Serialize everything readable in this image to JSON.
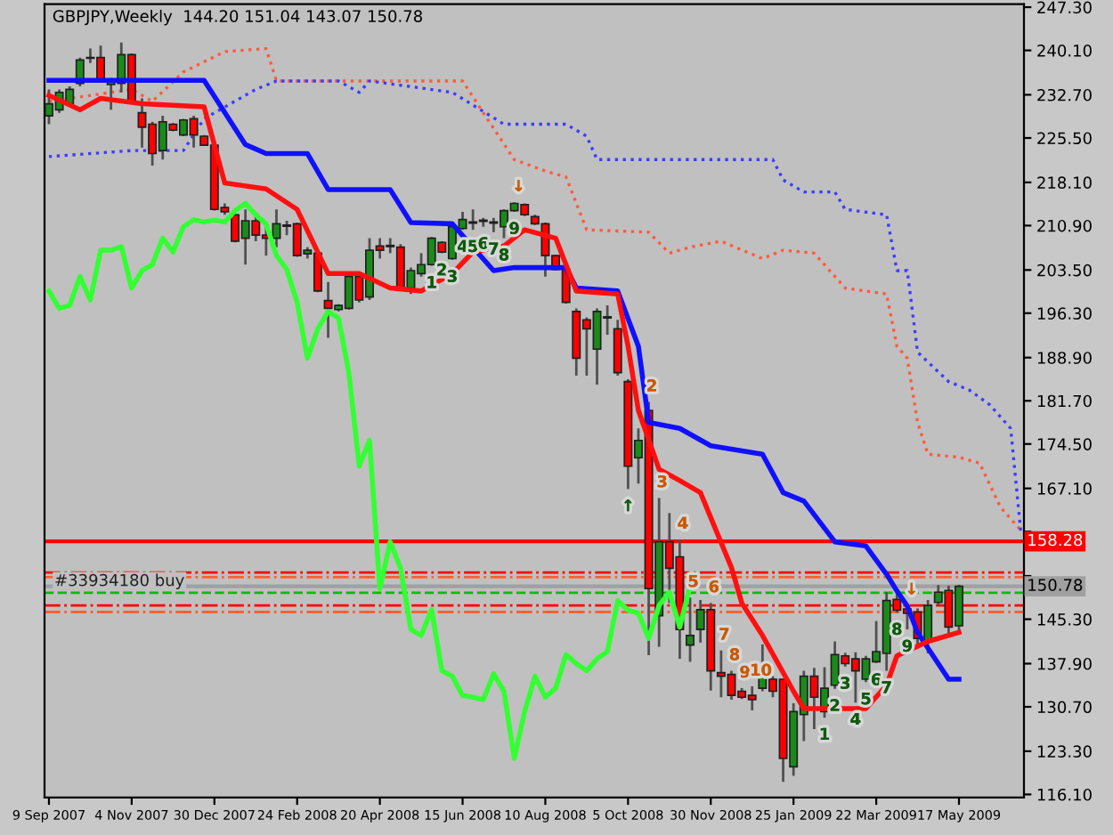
{
  "chart_data": {
    "type": "candlestick",
    "title": "GBPJPY,Weekly  144.20 151.04 143.07 150.78",
    "x": [
      "2007-09-09",
      "2007-09-16",
      "2007-09-23",
      "2007-09-30",
      "2007-10-07",
      "2007-10-14",
      "2007-10-21",
      "2007-10-28",
      "2007-11-04",
      "2007-11-11",
      "2007-11-18",
      "2007-11-25",
      "2007-12-02",
      "2007-12-09",
      "2007-12-16",
      "2007-12-23",
      "2007-12-30",
      "2008-01-06",
      "2008-01-13",
      "2008-01-20",
      "2008-01-27",
      "2008-02-03",
      "2008-02-10",
      "2008-02-17",
      "2008-02-24",
      "2008-03-02",
      "2008-03-09",
      "2008-03-16",
      "2008-03-23",
      "2008-03-30",
      "2008-04-06",
      "2008-04-13",
      "2008-04-20",
      "2008-04-27",
      "2008-05-04",
      "2008-05-11",
      "2008-05-18",
      "2008-05-25",
      "2008-06-01",
      "2008-06-08",
      "2008-06-15",
      "2008-06-22",
      "2008-06-29",
      "2008-07-06",
      "2008-07-13",
      "2008-07-20",
      "2008-07-27",
      "2008-08-03",
      "2008-08-10",
      "2008-08-17",
      "2008-08-24",
      "2008-08-31",
      "2008-09-07",
      "2008-09-14",
      "2008-09-21",
      "2008-09-28",
      "2008-10-05",
      "2008-10-12",
      "2008-10-19",
      "2008-10-26",
      "2008-11-02",
      "2008-11-09",
      "2008-11-16",
      "2008-11-23",
      "2008-11-30",
      "2008-12-07",
      "2008-12-14",
      "2008-12-21",
      "2008-12-28",
      "2009-01-04",
      "2009-01-11",
      "2009-01-18",
      "2009-01-25",
      "2009-02-01",
      "2009-02-08",
      "2009-02-15",
      "2009-02-22",
      "2009-03-01",
      "2009-03-08",
      "2009-03-15",
      "2009-03-22",
      "2009-03-29",
      "2009-04-05",
      "2009-04-12",
      "2009-04-19",
      "2009-04-26",
      "2009-05-03",
      "2009-05-10",
      "2009-05-17"
    ],
    "ohlc": [
      [
        229.2,
        233.6,
        227.8,
        231.2
      ],
      [
        230.2,
        233.6,
        229.7,
        233.1
      ],
      [
        231.2,
        234.1,
        230.7,
        233.6
      ],
      [
        234.6,
        238.9,
        234.1,
        238.5
      ],
      [
        238.9,
        240.4,
        238.0,
        238.8
      ],
      [
        238.9,
        240.9,
        234.9,
        235.0
      ],
      [
        234.4,
        235.5,
        230.2,
        234.8
      ],
      [
        234.6,
        241.4,
        233.1,
        239.4
      ],
      [
        239.4,
        239.6,
        231.2,
        231.6
      ],
      [
        229.7,
        232.1,
        223.9,
        227.3
      ],
      [
        227.8,
        228.2,
        220.9,
        222.9
      ],
      [
        223.4,
        229.2,
        221.9,
        228.2
      ],
      [
        227.8,
        228.0,
        226.6,
        226.8
      ],
      [
        226.0,
        228.7,
        225.8,
        228.5
      ],
      [
        228.7,
        229.2,
        223.9,
        226.0
      ],
      [
        225.8,
        226.0,
        224.2,
        224.3
      ],
      [
        224.3,
        224.5,
        213.4,
        213.6
      ],
      [
        213.9,
        214.6,
        212.7,
        213.2
      ],
      [
        212.7,
        212.9,
        208.1,
        208.3
      ],
      [
        208.8,
        213.6,
        204.4,
        211.7
      ],
      [
        211.7,
        212.7,
        208.3,
        209.3
      ],
      [
        209.3,
        211.2,
        205.9,
        208.8
      ],
      [
        208.8,
        213.6,
        207.3,
        211.2
      ],
      [
        211.0,
        211.7,
        209.3,
        210.8
      ],
      [
        211.2,
        211.4,
        205.7,
        205.9
      ],
      [
        206.2,
        207.3,
        205.4,
        206.8
      ],
      [
        206.3,
        206.5,
        199.8,
        200.0
      ],
      [
        198.4,
        201.5,
        192.2,
        197.1
      ],
      [
        196.9,
        197.8,
        196.6,
        197.6
      ],
      [
        197.1,
        202.6,
        196.9,
        202.4
      ],
      [
        202.4,
        202.9,
        198.1,
        198.5
      ],
      [
        199.0,
        208.8,
        198.5,
        206.8
      ],
      [
        207.5,
        208.8,
        205.4,
        206.8
      ],
      [
        207.6,
        208.8,
        206.3,
        207.4
      ],
      [
        207.3,
        207.8,
        200.0,
        200.5
      ],
      [
        200.5,
        203.9,
        199.5,
        203.4
      ],
      [
        202.9,
        206.3,
        202.4,
        204.4
      ],
      [
        204.4,
        209.0,
        204.2,
        208.8
      ],
      [
        208.1,
        208.3,
        206.3,
        206.5
      ],
      [
        205.4,
        210.9,
        205.2,
        210.7
      ],
      [
        210.4,
        213.2,
        210.2,
        211.9
      ],
      [
        211.3,
        213.6,
        210.2,
        211.5
      ],
      [
        211.6,
        212.2,
        210.7,
        211.8
      ],
      [
        211.3,
        212.2,
        209.8,
        211.5
      ],
      [
        210.7,
        213.6,
        208.8,
        213.4
      ],
      [
        213.4,
        214.8,
        213.2,
        214.6
      ],
      [
        214.4,
        214.6,
        212.5,
        212.7
      ],
      [
        212.4,
        212.7,
        211.0,
        211.2
      ],
      [
        211.2,
        211.4,
        202.4,
        205.9
      ],
      [
        205.9,
        206.0,
        203.4,
        203.6
      ],
      [
        203.6,
        203.8,
        197.9,
        198.1
      ],
      [
        196.6,
        197.1,
        185.9,
        188.8
      ],
      [
        195.2,
        195.6,
        185.9,
        193.7
      ],
      [
        190.3,
        197.1,
        184.4,
        196.6
      ],
      [
        195.7,
        197.6,
        192.7,
        195.5
      ],
      [
        193.7,
        195.2,
        185.9,
        186.4
      ],
      [
        184.9,
        185.3,
        167.0,
        170.8
      ],
      [
        172.2,
        177.1,
        167.9,
        175.1
      ],
      [
        180.1,
        181.5,
        139.3,
        150.4
      ],
      [
        145.9,
        165.5,
        140.7,
        158.2
      ],
      [
        158.2,
        163.0,
        148.0,
        153.8
      ],
      [
        155.7,
        158.6,
        138.7,
        143.6
      ],
      [
        141.0,
        148.9,
        138.2,
        142.6
      ],
      [
        143.6,
        148.5,
        141.4,
        146.9
      ],
      [
        146.9,
        148.0,
        133.4,
        136.7
      ],
      [
        136.4,
        140.1,
        132.3,
        135.8
      ],
      [
        136.1,
        136.7,
        131.9,
        132.6
      ],
      [
        133.3,
        133.8,
        132.0,
        132.3
      ],
      [
        132.6,
        134.1,
        130.1,
        131.9
      ],
      [
        133.8,
        141.1,
        133.3,
        136.2
      ],
      [
        135.3,
        135.8,
        132.3,
        133.3
      ],
      [
        135.3,
        135.3,
        118.2,
        122.1
      ],
      [
        120.7,
        131.3,
        119.2,
        129.9
      ],
      [
        129.4,
        136.7,
        125.0,
        135.8
      ],
      [
        135.8,
        137.2,
        127.0,
        132.3
      ],
      [
        129.9,
        137.3,
        128.9,
        133.8
      ],
      [
        134.3,
        141.6,
        133.7,
        139.4
      ],
      [
        139.2,
        139.7,
        137.4,
        137.9
      ],
      [
        138.7,
        139.8,
        131.4,
        136.7
      ],
      [
        135.3,
        139.2,
        134.8,
        138.7
      ],
      [
        138.2,
        145.0,
        138.0,
        139.9
      ],
      [
        139.6,
        149.8,
        136.7,
        148.4
      ],
      [
        148.6,
        149.5,
        146.4,
        146.8
      ],
      [
        147.0,
        147.6,
        143.6,
        146.3
      ],
      [
        146.5,
        147.1,
        140.4,
        142.1
      ],
      [
        141.6,
        148.5,
        139.6,
        147.6
      ],
      [
        148.1,
        151.0,
        147.7,
        149.8
      ],
      [
        150.1,
        150.9,
        142.9,
        144.0
      ],
      [
        144.2,
        151.04,
        143.07,
        150.78
      ]
    ],
    "colors": [
      "#1a8a1a",
      "#1a8a1a",
      "#1a8a1a",
      "#1a8a1a",
      "#ff0000",
      "#ff0000",
      "#1a8a1a",
      "#1a8a1a",
      "#ff0000",
      "#ff0000",
      "#ff0000",
      "#1a8a1a",
      "#ff0000",
      "#1a8a1a",
      "#ff0000",
      "#ff0000",
      "#ff0000",
      "#ff0000",
      "#ff0000",
      "#1a8a1a",
      "#ff0000",
      "#ff0000",
      "#1a8a1a",
      "#ff0000",
      "#ff0000",
      "#1a8a1a",
      "#ff0000",
      "#ff0000",
      "#1a8a1a",
      "#1a8a1a",
      "#ff0000",
      "#1a8a1a",
      "#ff0000",
      "#ff0000",
      "#ff0000",
      "#1a8a1a",
      "#1a8a1a",
      "#1a8a1a",
      "#ff0000",
      "#1a8a1a",
      "#1a8a1a",
      "#1a8a1a",
      "#1a8a1a",
      "#1a8a1a",
      "#1a8a1a",
      "#1a8a1a",
      "#ff0000",
      "#ff0000",
      "#ff0000",
      "#ff0000",
      "#ff0000",
      "#ff0000",
      "#ff0000",
      "#1a8a1a",
      "#ff0000",
      "#ff0000",
      "#ff0000",
      "#1a8a1a",
      "#ff0000",
      "#1a8a1a",
      "#ff0000",
      "#ff0000",
      "#1a8a1a",
      "#1a8a1a",
      "#ff0000",
      "#ff0000",
      "#ff0000",
      "#ff0000",
      "#ff0000",
      "#1a8a1a",
      "#ff0000",
      "#ff0000",
      "#1a8a1a",
      "#1a8a1a",
      "#ff0000",
      "#1a8a1a",
      "#1a8a1a",
      "#ff0000",
      "#ff0000",
      "#1a8a1a",
      "#1a8a1a",
      "#1a8a1a",
      "#ff0000",
      "#ff0000",
      "#ff0000",
      "#1a8a1a",
      "#1a8a1a",
      "#ff0000",
      "#1a8a1a"
    ],
    "series": [
      {
        "type": "line",
        "color": "#1010ff",
        "line_style": "solid",
        "x": [
          "2007-09-09",
          "2007-12-23",
          "2008-01-20",
          "2008-02-03",
          "2008-03-02",
          "2008-03-16",
          "2008-04-27",
          "2008-05-11",
          "2008-06-08",
          "2008-07-06",
          "2008-07-20",
          "2008-08-24",
          "2008-08-31",
          "2008-09-28",
          "2008-10-12",
          "2008-10-19",
          "2008-11-09",
          "2008-11-30",
          "2009-01-04",
          "2009-01-18",
          "2009-02-01",
          "2009-02-22",
          "2009-03-15",
          "2009-03-29",
          "2009-04-05",
          "2009-04-12",
          "2009-04-19",
          "2009-05-10",
          "2009-05-17"
        ],
        "values": [
          235.1,
          235.1,
          224.4,
          222.9,
          222.9,
          216.9,
          216.9,
          211.4,
          211.2,
          203.4,
          203.9,
          203.9,
          200.5,
          200.0,
          190.8,
          178.1,
          177.1,
          174.2,
          172.8,
          166.4,
          165.0,
          158.2,
          157.5,
          152.8,
          150.0,
          147.5,
          143.1,
          135.3,
          135.3
        ]
      },
      {
        "type": "line",
        "color": "#ff1010",
        "line_style": "solid",
        "x": [
          "2007-09-09",
          "2007-09-30",
          "2007-10-14",
          "2007-11-11",
          "2007-12-23",
          "2008-01-06",
          "2008-02-03",
          "2008-02-24",
          "2008-03-16",
          "2008-04-06",
          "2008-04-27",
          "2008-05-18",
          "2008-06-08",
          "2008-06-22",
          "2008-07-13",
          "2008-07-27",
          "2008-08-17",
          "2008-08-31",
          "2008-09-28",
          "2008-10-05",
          "2008-10-12",
          "2008-10-26",
          "2008-11-09",
          "2008-11-23",
          "2008-12-14",
          "2008-12-21",
          "2009-01-04",
          "2009-01-25",
          "2009-02-01",
          "2009-03-15",
          "2009-03-29",
          "2009-04-05",
          "2009-04-26",
          "2009-05-17"
        ],
        "values": [
          232.6,
          230.2,
          232.1,
          231.2,
          230.7,
          218.0,
          217.0,
          213.6,
          202.9,
          202.9,
          200.5,
          200.0,
          202.9,
          206.5,
          207.5,
          210.2,
          208.8,
          200.0,
          199.5,
          190.8,
          180.1,
          170.3,
          168.4,
          166.4,
          153.9,
          148.0,
          142.6,
          133.3,
          130.4,
          130.4,
          134.3,
          139.2,
          141.6,
          143.1
        ]
      },
      {
        "type": "line",
        "color": "#33ff33",
        "line_style": "solid",
        "x": [
          "2007-09-09",
          "2007-09-16",
          "2007-09-23",
          "2007-09-30",
          "2007-10-07",
          "2007-10-14",
          "2007-10-21",
          "2007-10-28",
          "2007-11-04",
          "2007-11-11",
          "2007-11-18",
          "2007-11-25",
          "2007-12-02",
          "2007-12-09",
          "2007-12-16",
          "2007-12-23",
          "2007-12-30",
          "2008-01-06",
          "2008-01-13",
          "2008-01-20",
          "2008-01-27",
          "2008-02-03",
          "2008-02-10",
          "2008-02-17",
          "2008-02-24",
          "2008-03-02",
          "2008-03-09",
          "2008-03-16",
          "2008-03-23",
          "2008-03-30",
          "2008-04-06",
          "2008-04-13",
          "2008-04-20",
          "2008-04-27",
          "2008-05-04",
          "2008-05-11",
          "2008-05-18",
          "2008-05-25",
          "2008-06-01",
          "2008-06-08",
          "2008-06-15",
          "2008-06-22",
          "2008-06-29",
          "2008-07-06",
          "2008-07-13",
          "2008-07-20",
          "2008-07-27",
          "2008-08-03",
          "2008-08-10",
          "2008-08-17",
          "2008-08-24",
          "2008-08-31",
          "2008-09-07",
          "2008-09-14",
          "2008-09-21",
          "2008-09-28",
          "2008-10-05",
          "2008-10-12",
          "2008-10-19",
          "2008-10-26",
          "2008-11-02",
          "2008-11-09",
          "2008-11-16"
        ],
        "values": [
          200.0,
          197.1,
          197.6,
          202.4,
          198.5,
          206.8,
          206.8,
          207.4,
          200.5,
          203.4,
          204.4,
          208.8,
          206.5,
          210.7,
          211.9,
          211.5,
          211.8,
          211.5,
          213.4,
          214.6,
          212.7,
          211.2,
          205.9,
          203.6,
          198.1,
          188.8,
          193.7,
          196.6,
          195.5,
          186.4,
          170.8,
          175.1,
          150.4,
          158.2,
          153.8,
          143.6,
          142.6,
          146.9,
          136.7,
          135.8,
          132.6,
          132.3,
          131.9,
          136.2,
          133.3,
          122.1,
          129.9,
          135.8,
          132.3,
          133.8,
          139.4,
          137.9,
          136.7,
          138.7,
          139.9,
          148.4,
          146.8,
          146.3,
          142.1,
          147.6,
          149.8,
          144.0,
          150.8
        ]
      },
      {
        "type": "line",
        "color": "#ff5a3c",
        "line_style": "dotted",
        "x": [
          "2007-09-09",
          "2007-11-04",
          "2007-11-18",
          "2007-12-09",
          "2008-01-06",
          "2008-02-03",
          "2008-02-10",
          "2008-06-15",
          "2008-06-29",
          "2008-07-20",
          "2008-08-10",
          "2008-08-24",
          "2008-09-07",
          "2008-10-19",
          "2008-11-02",
          "2008-11-16",
          "2008-12-07",
          "2009-01-04",
          "2009-01-18",
          "2009-02-08",
          "2009-03-01",
          "2009-03-29",
          "2009-04-05",
          "2009-04-12",
          "2009-04-19",
          "2009-04-26",
          "2009-05-17",
          "2009-05-31",
          "2009-06-14",
          "2009-06-28"
        ],
        "values": [
          231.6,
          233.6,
          231.6,
          236.5,
          239.9,
          240.4,
          235.0,
          235.0,
          229.7,
          221.9,
          220.0,
          219.0,
          210.2,
          209.8,
          206.3,
          207.3,
          208.3,
          205.4,
          206.8,
          206.3,
          200.5,
          199.5,
          190.8,
          188.8,
          178.1,
          172.8,
          172.3,
          171.3,
          164.0,
          160.1
        ]
      },
      {
        "type": "line",
        "color": "#3c3cff",
        "line_style": "dotted",
        "x": [
          "2007-09-09",
          "2007-11-04",
          "2007-12-09",
          "2007-12-23",
          "2008-01-27",
          "2008-02-10",
          "2008-03-23",
          "2008-04-06",
          "2008-04-13",
          "2008-06-08",
          "2008-07-13",
          "2008-08-24",
          "2008-09-07",
          "2008-09-14",
          "2009-01-11",
          "2009-01-18",
          "2009-02-01",
          "2009-02-22",
          "2009-03-01",
          "2009-03-29",
          "2009-04-05",
          "2009-04-12",
          "2009-04-19",
          "2009-05-10",
          "2009-05-24",
          "2009-06-07",
          "2009-06-21",
          "2009-06-28"
        ],
        "values": [
          222.4,
          223.4,
          223.4,
          228.7,
          233.6,
          235.0,
          235.0,
          233.1,
          235.0,
          233.1,
          227.8,
          227.8,
          225.8,
          221.9,
          221.9,
          218.5,
          216.5,
          216.5,
          213.6,
          212.7,
          203.4,
          203.4,
          189.8,
          184.9,
          183.5,
          181.0,
          177.1,
          159.5
        ]
      }
    ],
    "ref_lines": [
      {
        "axis": "y",
        "value": 158.28,
        "label": "158.28",
        "color": "#ff0000",
        "line_style": "solid"
      },
      {
        "axis": "y",
        "value": 153.1,
        "color": "#ff0000",
        "line_style": "dashdot"
      },
      {
        "axis": "y",
        "value": 152.3,
        "color": "#ff6030",
        "line_style": "dashdot"
      },
      {
        "axis": "y",
        "value": 150.78,
        "label": "150.78",
        "color": "#a0a0a0",
        "line_style": "solid"
      },
      {
        "axis": "y",
        "value": 149.7,
        "label": "#33934180 buy",
        "color": "#00c000",
        "line_style": "dashed"
      },
      {
        "axis": "y",
        "value": 147.6,
        "color": "#ff0000",
        "line_style": "dashdot"
      },
      {
        "axis": "y",
        "value": 146.5,
        "color": "#ff6030",
        "line_style": "dashdot"
      }
    ],
    "annotations": [
      {
        "text": "1",
        "x": "2008-05-25",
        "y": 204.2
      },
      {
        "text": "2",
        "x": "2008-06-01",
        "y": 206.3
      },
      {
        "text": "3",
        "x": "2008-06-08",
        "y": 205.2
      },
      {
        "text": "4",
        "x": "2008-06-15",
        "y": 210.2
      },
      {
        "text": "5",
        "x": "2008-06-22",
        "y": 210.2
      },
      {
        "text": "6",
        "x": "2008-06-29",
        "y": 210.7
      },
      {
        "text": "7",
        "x": "2008-07-06",
        "y": 209.8
      },
      {
        "text": "8",
        "x": "2008-07-13",
        "y": 208.8
      },
      {
        "text": "9",
        "x": "2008-07-20",
        "y": 213.2
      },
      {
        "text": "↓",
        "x": "2008-07-20",
        "y": 214.8
      },
      {
        "text": "↑",
        "x": "2008-10-05",
        "y": 167.0
      },
      {
        "text": "↓",
        "x": "2009-04-12",
        "y": 147.6
      },
      {
        "text": "2",
        "x": "2008-10-19",
        "y": 181.5
      },
      {
        "text": "3",
        "x": "2008-10-26",
        "y": 165.5
      },
      {
        "text": "4",
        "x": "2008-11-09",
        "y": 158.6
      },
      {
        "text": "5",
        "x": "2008-11-16",
        "y": 148.9
      },
      {
        "text": "6",
        "x": "2008-11-30",
        "y": 148.0
      },
      {
        "text": "7",
        "x": "2008-12-07",
        "y": 140.1
      },
      {
        "text": "8",
        "x": "2008-12-14",
        "y": 136.7
      },
      {
        "text": "9",
        "x": "2008-12-21",
        "y": 133.8
      },
      {
        "text": "10",
        "x": "2008-12-28",
        "y": 134.1
      },
      {
        "text": "1",
        "x": "2009-02-15",
        "y": 128.9
      },
      {
        "text": "2",
        "x": "2009-02-22",
        "y": 133.7
      },
      {
        "text": "3",
        "x": "2009-03-01",
        "y": 137.4
      },
      {
        "text": "4",
        "x": "2009-03-08",
        "y": 131.4
      },
      {
        "text": "5",
        "x": "2009-03-15",
        "y": 134.8
      },
      {
        "text": "6",
        "x": "2009-03-22",
        "y": 138.0
      },
      {
        "text": "7",
        "x": "2009-03-29",
        "y": 136.7
      },
      {
        "text": "8",
        "x": "2009-04-05",
        "y": 146.4
      },
      {
        "text": "9",
        "x": "2009-04-12",
        "y": 143.6
      }
    ],
    "xlim": [
      "2007-09-06",
      "2009-06-30"
    ],
    "xticks": [
      {
        "value": "2007-09-09",
        "label": "9 Sep 2007"
      },
      {
        "value": "2007-11-04",
        "label": "4 Nov 2007"
      },
      {
        "value": "2007-12-30",
        "label": "30 Dec 2007"
      },
      {
        "value": "2008-02-24",
        "label": "24 Feb 2008"
      },
      {
        "value": "2008-04-20",
        "label": "20 Apr 2008"
      },
      {
        "value": "2008-06-15",
        "label": "15 Jun 2008"
      },
      {
        "value": "2008-08-10",
        "label": "10 Aug 2008"
      },
      {
        "value": "2008-10-05",
        "label": "5 Oct 2008"
      },
      {
        "value": "2008-11-30",
        "label": "30 Nov 2008"
      },
      {
        "value": "2009-01-25",
        "label": "25 Jan 2009"
      },
      {
        "value": "2009-03-22",
        "label": "22 Mar 2009"
      },
      {
        "value": "2009-05-17",
        "label": "17 May 2009"
      }
    ],
    "ylim": [
      115.6,
      247.8
    ],
    "yticks": [
      {
        "value": 247.3,
        "label": "247.30"
      },
      {
        "value": 240.1,
        "label": "240.10"
      },
      {
        "value": 232.7,
        "label": "232.70"
      },
      {
        "value": 225.5,
        "label": "225.50"
      },
      {
        "value": 218.1,
        "label": "218.10"
      },
      {
        "value": 210.9,
        "label": "210.90"
      },
      {
        "value": 203.5,
        "label": "203.50"
      },
      {
        "value": 196.3,
        "label": "196.30"
      },
      {
        "value": 188.9,
        "label": "188.90"
      },
      {
        "value": 181.7,
        "label": "181.70"
      },
      {
        "value": 174.5,
        "label": "174.50"
      },
      {
        "value": 167.1,
        "label": "167.10"
      },
      {
        "value": 159.9,
        "label": null
      },
      {
        "value": 152.5,
        "label": null
      },
      {
        "value": 145.3,
        "label": "145.30"
      },
      {
        "value": 137.9,
        "label": "137.90"
      },
      {
        "value": 130.7,
        "label": "130.70"
      },
      {
        "value": 123.3,
        "label": "123.30"
      },
      {
        "value": 116.1,
        "label": "116.10"
      }
    ],
    "grid": false,
    "legend": false
  }
}
